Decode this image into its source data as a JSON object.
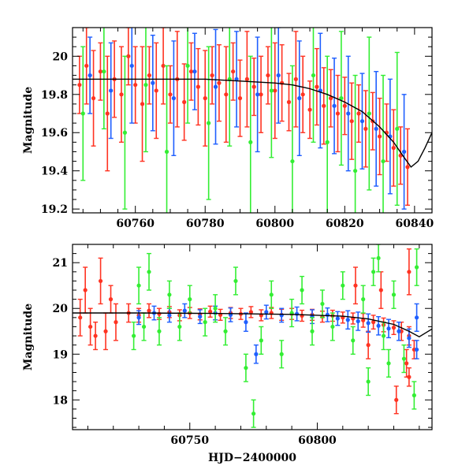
{
  "chart_data": [
    {
      "type": "scatter",
      "panel": "top",
      "xlabel": "",
      "ylabel": "Magnitude",
      "xlim": [
        60742,
        60845
      ],
      "ylim": [
        20.15,
        19.18
      ],
      "y_inverted": true,
      "x_ticks": [
        60760,
        60780,
        60800,
        60820,
        60840
      ],
      "y_ticks": [
        19.2,
        19.4,
        19.6,
        19.8,
        20
      ],
      "y_tick_labels": [
        "19.2",
        "19.4",
        "19.6",
        "19.8",
        "20"
      ],
      "model_curve": {
        "color": "#000000",
        "x": [
          60742,
          60760,
          60780,
          60790,
          60800,
          60805,
          60810,
          60815,
          60820,
          60825,
          60830,
          60834,
          60837,
          60839,
          60841,
          60843,
          60845
        ],
        "y": [
          19.88,
          19.88,
          19.88,
          19.87,
          19.86,
          19.85,
          19.83,
          19.8,
          19.76,
          19.71,
          19.63,
          19.55,
          19.47,
          19.42,
          19.45,
          19.52,
          19.6
        ]
      },
      "series": [
        {
          "color": "#ff3322",
          "points": [
            [
              60744,
              19.85,
              0.15
            ],
            [
              60746,
              19.95,
              0.2
            ],
            [
              60748,
              19.78,
              0.25
            ],
            [
              60750,
              19.92,
              0.15
            ],
            [
              60752,
              19.7,
              0.3
            ],
            [
              60754,
              19.88,
              0.2
            ],
            [
              60756,
              19.8,
              0.25
            ],
            [
              60758,
              20.0,
              0.15
            ],
            [
              60760,
              19.85,
              0.2
            ],
            [
              60762,
              19.75,
              0.3
            ],
            [
              60764,
              19.9,
              0.15
            ],
            [
              60766,
              19.82,
              0.25
            ],
            [
              60768,
              19.95,
              0.2
            ],
            [
              60770,
              19.8,
              0.15
            ],
            [
              60772,
              19.88,
              0.25
            ],
            [
              60774,
              19.76,
              0.2
            ],
            [
              60776,
              19.92,
              0.15
            ],
            [
              60778,
              19.84,
              0.2
            ],
            [
              60780,
              19.78,
              0.25
            ],
            [
              60782,
              19.9,
              0.15
            ],
            [
              60784,
              19.86,
              0.2
            ],
            [
              60786,
              19.8,
              0.25
            ],
            [
              60788,
              19.92,
              0.15
            ],
            [
              60790,
              19.78,
              0.2
            ],
            [
              60792,
              19.88,
              0.25
            ],
            [
              60794,
              19.84,
              0.15
            ],
            [
              60796,
              19.8,
              0.2
            ],
            [
              60798,
              19.9,
              0.15
            ],
            [
              60800,
              19.82,
              0.25
            ],
            [
              60802,
              19.86,
              0.2
            ],
            [
              60804,
              19.76,
              0.15
            ],
            [
              60806,
              19.88,
              0.25
            ],
            [
              60808,
              19.8,
              0.2
            ],
            [
              60810,
              19.72,
              0.15
            ],
            [
              60812,
              19.84,
              0.2
            ],
            [
              60814,
              19.74,
              0.2
            ],
            [
              60816,
              19.78,
              0.15
            ],
            [
              60818,
              19.7,
              0.2
            ],
            [
              60820,
              19.74,
              0.15
            ],
            [
              60822,
              19.66,
              0.2
            ],
            [
              60824,
              19.7,
              0.15
            ],
            [
              60826,
              19.62,
              0.2
            ],
            [
              60828,
              19.66,
              0.15
            ],
            [
              60830,
              19.58,
              0.2
            ],
            [
              60832,
              19.6,
              0.15
            ],
            [
              60834,
              19.52,
              0.2
            ],
            [
              60836,
              19.48,
              0.15
            ],
            [
              60838,
              19.42,
              0.2
            ]
          ]
        },
        {
          "color": "#1f5fff",
          "points": [
            [
              60747,
              19.9,
              0.2
            ],
            [
              60753,
              19.82,
              0.25
            ],
            [
              60759,
              19.95,
              0.3
            ],
            [
              60765,
              19.86,
              0.25
            ],
            [
              60771,
              19.78,
              0.3
            ],
            [
              60777,
              19.92,
              0.2
            ],
            [
              60783,
              19.84,
              0.3
            ],
            [
              60789,
              19.88,
              0.25
            ],
            [
              60795,
              19.8,
              0.3
            ],
            [
              60801,
              19.9,
              0.25
            ],
            [
              60807,
              19.78,
              0.3
            ],
            [
              60813,
              19.82,
              0.3
            ],
            [
              60817,
              19.74,
              0.25
            ],
            [
              60821,
              19.7,
              0.3
            ],
            [
              60825,
              19.66,
              0.25
            ],
            [
              60829,
              19.62,
              0.3
            ],
            [
              60833,
              19.58,
              0.3
            ],
            [
              60837,
              19.5,
              0.3
            ]
          ]
        },
        {
          "color": "#33ee33",
          "points": [
            [
              60745,
              19.7,
              0.35
            ],
            [
              60751,
              19.92,
              0.3
            ],
            [
              60757,
              19.6,
              0.4
            ],
            [
              60763,
              19.85,
              0.35
            ],
            [
              60769,
              19.5,
              0.45
            ],
            [
              60775,
              19.95,
              0.3
            ],
            [
              60781,
              19.65,
              0.4
            ],
            [
              60787,
              19.88,
              0.35
            ],
            [
              60793,
              19.55,
              0.45
            ],
            [
              60799,
              19.82,
              0.35
            ],
            [
              60805,
              19.45,
              0.5
            ],
            [
              60811,
              19.9,
              0.35
            ],
            [
              60815,
              19.55,
              0.45
            ],
            [
              60819,
              19.78,
              0.35
            ],
            [
              60823,
              19.4,
              0.5
            ],
            [
              60827,
              19.7,
              0.4
            ],
            [
              60831,
              19.45,
              0.45
            ],
            [
              60835,
              19.62,
              0.4
            ]
          ]
        }
      ]
    },
    {
      "type": "scatter",
      "panel": "bottom",
      "xlabel": "HJD−2400000",
      "ylabel": "Magnitude",
      "xlim": [
        60704,
        60845
      ],
      "ylim": [
        21.4,
        17.35
      ],
      "y_inverted": true,
      "x_ticks": [
        60750,
        60800
      ],
      "y_ticks": [
        18,
        19,
        20,
        21
      ],
      "y_tick_labels": [
        "18",
        "19",
        "20",
        "21"
      ],
      "model_curve": {
        "color": "#000000",
        "x": [
          60704,
          60730,
          60760,
          60790,
          60810,
          60820,
          60830,
          60836,
          60840,
          60845
        ],
        "y": [
          19.9,
          19.9,
          19.89,
          19.87,
          19.83,
          19.77,
          19.65,
          19.5,
          19.38,
          19.55
        ]
      },
      "series": [
        {
          "color": "#ff3322",
          "points": [
            [
              60707,
              19.8,
              0.4
            ],
            [
              60709,
              20.4,
              0.5
            ],
            [
              60711,
              19.6,
              0.4
            ],
            [
              60713,
              19.4,
              0.3
            ],
            [
              60715,
              20.6,
              0.5
            ],
            [
              60717,
              19.5,
              0.4
            ],
            [
              60719,
              20.2,
              0.3
            ],
            [
              60721,
              19.7,
              0.4
            ],
            [
              60726,
              19.9,
              0.2
            ],
            [
              60730,
              19.85,
              0.15
            ],
            [
              60734,
              19.95,
              0.15
            ],
            [
              60738,
              19.88,
              0.12
            ],
            [
              60742,
              19.92,
              0.12
            ],
            [
              60746,
              19.85,
              0.12
            ],
            [
              60750,
              19.9,
              0.12
            ],
            [
              60754,
              19.87,
              0.12
            ],
            [
              60758,
              19.93,
              0.12
            ],
            [
              60762,
              19.86,
              0.12
            ],
            [
              60766,
              19.9,
              0.12
            ],
            [
              60770,
              19.88,
              0.12
            ],
            [
              60774,
              19.92,
              0.12
            ],
            [
              60778,
              19.85,
              0.12
            ],
            [
              60782,
              19.9,
              0.12
            ],
            [
              60786,
              19.86,
              0.12
            ],
            [
              60790,
              19.88,
              0.12
            ],
            [
              60794,
              19.84,
              0.12
            ],
            [
              60798,
              19.86,
              0.12
            ],
            [
              60802,
              19.82,
              0.12
            ],
            [
              60806,
              19.84,
              0.12
            ],
            [
              60810,
              19.8,
              0.12
            ],
            [
              60814,
              19.78,
              0.12
            ],
            [
              60818,
              19.74,
              0.15
            ],
            [
              60822,
              19.7,
              0.15
            ],
            [
              60826,
              19.64,
              0.15
            ],
            [
              60830,
              19.58,
              0.15
            ],
            [
              60833,
              19.5,
              0.2
            ],
            [
              60836,
              19.4,
              0.2
            ],
            [
              60831,
              18.0,
              0.3
            ],
            [
              60835,
              18.8,
              0.3
            ],
            [
              60825,
              20.4,
              0.4
            ],
            [
              60815,
              20.5,
              0.4
            ],
            [
              60836,
              20.8,
              0.5
            ],
            [
              60820,
              19.2,
              0.3
            ],
            [
              60836,
              18.5,
              0.2
            ],
            [
              60838,
              19.1,
              0.2
            ]
          ]
        },
        {
          "color": "#1f5fff",
          "points": [
            [
              60730,
              19.8,
              0.15
            ],
            [
              60736,
              19.9,
              0.15
            ],
            [
              60742,
              19.85,
              0.15
            ],
            [
              60748,
              19.95,
              0.15
            ],
            [
              60754,
              19.82,
              0.15
            ],
            [
              60760,
              19.9,
              0.15
            ],
            [
              60766,
              19.86,
              0.15
            ],
            [
              60772,
              19.7,
              0.2
            ],
            [
              60776,
              19.0,
              0.2
            ],
            [
              60780,
              19.92,
              0.15
            ],
            [
              60786,
              19.85,
              0.15
            ],
            [
              60792,
              19.88,
              0.15
            ],
            [
              60798,
              19.82,
              0.15
            ],
            [
              60804,
              19.86,
              0.15
            ],
            [
              60808,
              19.78,
              0.15
            ],
            [
              60812,
              19.75,
              0.2
            ],
            [
              60816,
              19.72,
              0.2
            ],
            [
              60820,
              19.68,
              0.2
            ],
            [
              60824,
              19.62,
              0.2
            ],
            [
              60828,
              19.56,
              0.2
            ],
            [
              60832,
              19.5,
              0.2
            ],
            [
              60836,
              19.35,
              0.2
            ],
            [
              60839,
              19.1,
              0.2
            ],
            [
              60839,
              19.8,
              0.3
            ]
          ]
        },
        {
          "color": "#33ee33",
          "points": [
            [
              60728,
              19.4,
              0.3
            ],
            [
              60730,
              20.5,
              0.4
            ],
            [
              60732,
              19.6,
              0.3
            ],
            [
              60734,
              20.8,
              0.4
            ],
            [
              60738,
              19.5,
              0.3
            ],
            [
              60742,
              20.3,
              0.3
            ],
            [
              60746,
              19.6,
              0.3
            ],
            [
              60750,
              20.2,
              0.3
            ],
            [
              60756,
              19.7,
              0.3
            ],
            [
              60760,
              20.0,
              0.3
            ],
            [
              60764,
              19.5,
              0.3
            ],
            [
              60768,
              20.6,
              0.3
            ],
            [
              60772,
              18.7,
              0.3
            ],
            [
              60775,
              17.7,
              0.3
            ],
            [
              60778,
              19.3,
              0.3
            ],
            [
              60782,
              20.3,
              0.3
            ],
            [
              60786,
              19.0,
              0.3
            ],
            [
              60790,
              19.9,
              0.3
            ],
            [
              60794,
              20.4,
              0.3
            ],
            [
              60798,
              19.5,
              0.3
            ],
            [
              60802,
              20.1,
              0.3
            ],
            [
              60806,
              19.6,
              0.3
            ],
            [
              60810,
              20.5,
              0.3
            ],
            [
              60814,
              19.3,
              0.3
            ],
            [
              60818,
              20.2,
              0.3
            ],
            [
              60820,
              18.4,
              0.3
            ],
            [
              60822,
              20.8,
              0.3
            ],
            [
              60826,
              19.4,
              0.3
            ],
            [
              60828,
              18.8,
              0.3
            ],
            [
              60830,
              20.3,
              0.3
            ],
            [
              60834,
              18.9,
              0.3
            ],
            [
              60838,
              18.1,
              0.3
            ],
            [
              60839,
              20.9,
              0.4
            ],
            [
              60824,
              21.1,
              0.3
            ]
          ]
        }
      ]
    }
  ]
}
